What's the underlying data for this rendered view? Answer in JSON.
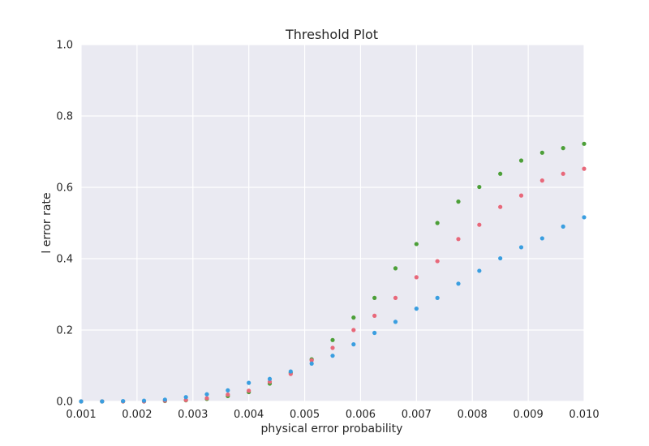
{
  "chart_data": {
    "type": "scatter",
    "title": "Threshold Plot",
    "xlabel": "physical error probability",
    "ylabel": "l error rate",
    "xlim": [
      0.001,
      0.01
    ],
    "ylim": [
      0.0,
      1.0
    ],
    "x_ticks": [
      "0.001",
      "0.002",
      "0.003",
      "0.004",
      "0.005",
      "0.006",
      "0.007",
      "0.008",
      "0.009",
      "0.010"
    ],
    "y_ticks": [
      "0.0",
      "0.2",
      "0.4",
      "0.6",
      "0.8",
      "1.0"
    ],
    "grid": true,
    "x": [
      0.001,
      0.001375,
      0.00175,
      0.002125,
      0.0025,
      0.002875,
      0.00325,
      0.003625,
      0.004,
      0.004375,
      0.00475,
      0.005125,
      0.0055,
      0.005875,
      0.00625,
      0.006625,
      0.007,
      0.007375,
      0.00775,
      0.008125,
      0.0085,
      0.008875,
      0.00925,
      0.009625,
      0.01
    ],
    "series": [
      {
        "color": "#4c9f38",
        "values": [
          0.0,
          0.0,
          0.0,
          0.0,
          0.001,
          0.003,
          0.007,
          0.015,
          0.026,
          0.05,
          0.08,
          0.118,
          0.172,
          0.235,
          0.29,
          0.373,
          0.441,
          0.5,
          0.56,
          0.601,
          0.638,
          0.675,
          0.697,
          0.71,
          0.722
        ]
      },
      {
        "color": "#e8687a",
        "values": [
          0.0,
          0.0,
          0.0,
          0.0,
          0.002,
          0.004,
          0.009,
          0.019,
          0.03,
          0.055,
          0.077,
          0.115,
          0.15,
          0.2,
          0.24,
          0.29,
          0.348,
          0.393,
          0.455,
          0.495,
          0.545,
          0.577,
          0.619,
          0.638,
          0.652
        ]
      },
      {
        "color": "#3a9ee0",
        "values": [
          0.0,
          0.0,
          0.001,
          0.002,
          0.005,
          0.012,
          0.02,
          0.031,
          0.052,
          0.063,
          0.084,
          0.106,
          0.128,
          0.16,
          0.192,
          0.223,
          0.26,
          0.29,
          0.33,
          0.366,
          0.401,
          0.432,
          0.457,
          0.49,
          0.516
        ]
      }
    ]
  }
}
